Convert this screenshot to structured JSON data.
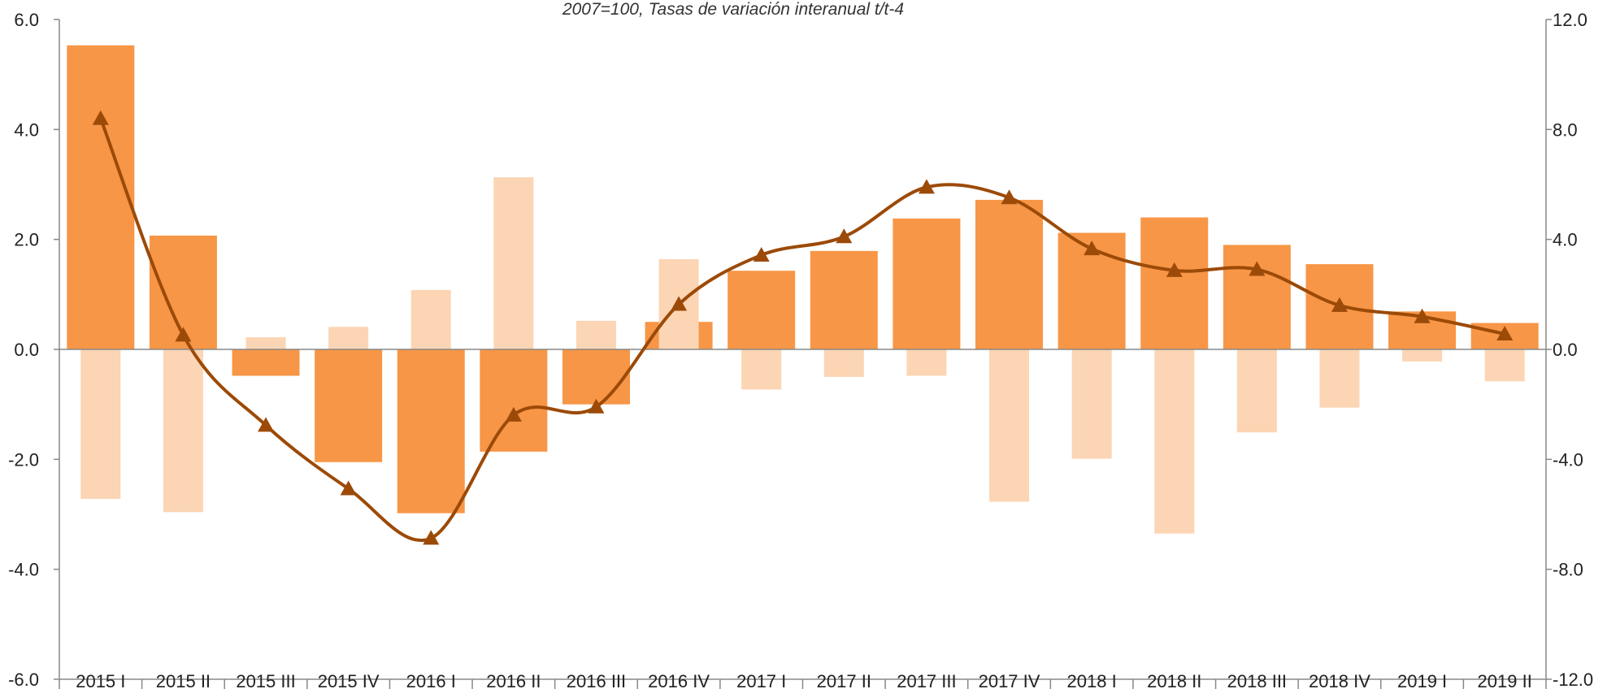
{
  "chart_data": {
    "type": "bar-line",
    "subtitle": "2007=100, Tasas de variación interanual t/t-4",
    "categories": [
      "2015 I",
      "2015 II",
      "2015 III",
      "2015 IV",
      "2016 I",
      "2016 II",
      "2016 III",
      "2016 IV",
      "2017 I",
      "2017 II",
      "2017 III",
      "2017 IV",
      "2018 I",
      "2018 II",
      "2018 III",
      "2018 IV",
      "2019 I",
      "2019 II"
    ],
    "series": [
      {
        "type": "bar",
        "color": "#f79646",
        "values": [
          5.53,
          2.07,
          -0.48,
          -2.05,
          -2.98,
          -1.86,
          -1.0,
          0.5,
          1.43,
          1.79,
          2.38,
          2.72,
          2.12,
          2.4,
          1.9,
          1.55,
          0.69,
          0.48
        ]
      },
      {
        "type": "bar",
        "color": "#fcd5b4",
        "values": [
          -2.72,
          -2.96,
          0.22,
          0.41,
          1.08,
          3.13,
          0.52,
          1.64,
          -0.73,
          -0.5,
          -0.48,
          -2.77,
          -1.99,
          -3.35,
          -1.51,
          -1.06,
          -0.22,
          -0.58
        ]
      },
      {
        "type": "line",
        "axis": "y2",
        "color": "#9c4a08",
        "marker": "triangle",
        "smooth": true,
        "values": [
          8.4,
          0.52,
          -2.76,
          -5.07,
          -6.87,
          -2.39,
          -2.09,
          1.64,
          3.43,
          4.1,
          5.9,
          5.52,
          3.66,
          2.87,
          2.91,
          1.6,
          1.19,
          0.56
        ]
      }
    ],
    "ylim": [
      -6,
      6
    ],
    "yticks": [
      {
        "value": -6,
        "label": "-6.0"
      },
      {
        "value": -4,
        "label": "-4.0"
      },
      {
        "value": -2,
        "label": "-2.0"
      },
      {
        "value": 0,
        "label": "0.0"
      },
      {
        "value": 2,
        "label": "2.0"
      },
      {
        "value": 4,
        "label": "4.0"
      },
      {
        "value": 6,
        "label": "6.0"
      }
    ],
    "y2lim": [
      -12,
      12
    ],
    "y2ticks": [
      {
        "value": -12,
        "label": "-12.0"
      },
      {
        "value": -8,
        "label": "-8.0"
      },
      {
        "value": -4,
        "label": "-4.0"
      },
      {
        "value": 0,
        "label": "0.0"
      },
      {
        "value": 4,
        "label": "4.0"
      },
      {
        "value": 8,
        "label": "8.0"
      },
      {
        "value": 12,
        "label": "12.0"
      }
    ]
  }
}
